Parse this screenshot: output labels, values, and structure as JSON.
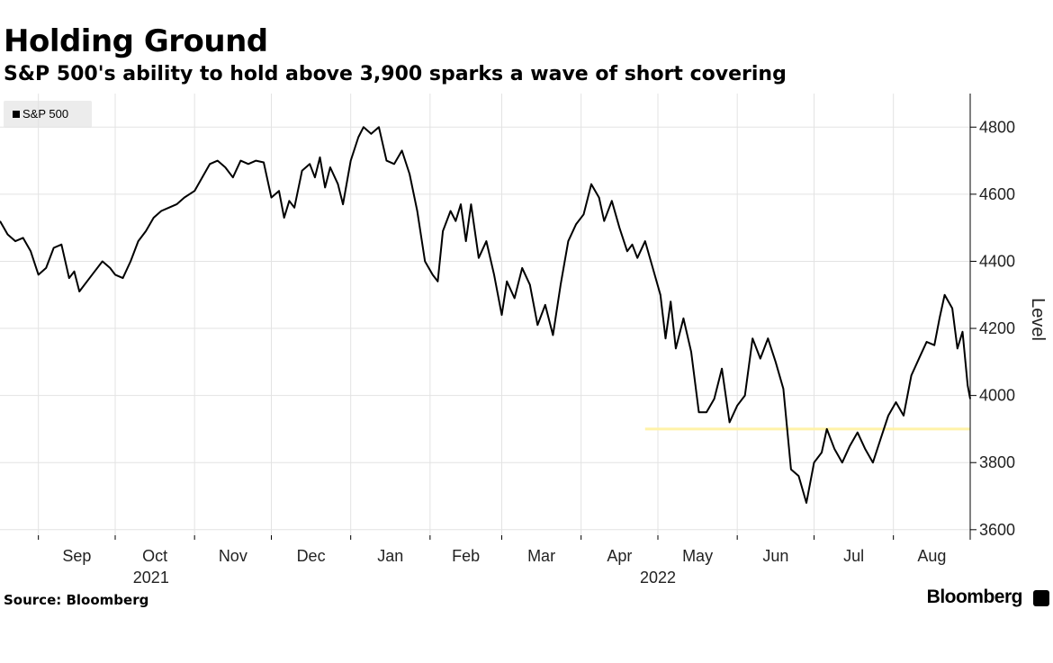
{
  "chart_data": {
    "type": "line",
    "title": "Holding Ground",
    "subtitle": "S&P 500's ability to hold above 3,900 sparks a wave of short covering",
    "xlabel": "",
    "ylabel": "Level",
    "ylim": [
      3570,
      4900
    ],
    "yticks": [
      3600,
      3800,
      4000,
      4200,
      4400,
      4600,
      4800
    ],
    "xlim": [
      "2021-08-17",
      "2022-08-31"
    ],
    "x_month_ticks": [
      {
        "date": "2021-09-01",
        "label": "Sep"
      },
      {
        "date": "2021-10-01",
        "label": "Oct"
      },
      {
        "date": "2021-11-01",
        "label": "Nov"
      },
      {
        "date": "2021-12-01",
        "label": "Dec"
      },
      {
        "date": "2022-01-01",
        "label": "Jan"
      },
      {
        "date": "2022-02-01",
        "label": "Feb"
      },
      {
        "date": "2022-03-01",
        "label": "Mar"
      },
      {
        "date": "2022-04-01",
        "label": "Apr"
      },
      {
        "date": "2022-05-01",
        "label": "May"
      },
      {
        "date": "2022-06-01",
        "label": "Jun"
      },
      {
        "date": "2022-07-01",
        "label": "Jul"
      },
      {
        "date": "2022-08-01",
        "label": "Aug"
      }
    ],
    "x_year_labels": [
      {
        "date": "2021-10-15",
        "label": "2021"
      },
      {
        "date": "2022-05-01",
        "label": "2022"
      }
    ],
    "grid": true,
    "legend_position": "top-left",
    "series": [
      {
        "name": "S&P 500",
        "color": "#000000",
        "points": [
          [
            "2021-08-17",
            4520
          ],
          [
            "2021-08-20",
            4480
          ],
          [
            "2021-08-23",
            4460
          ],
          [
            "2021-08-26",
            4470
          ],
          [
            "2021-08-29",
            4430
          ],
          [
            "2021-09-01",
            4360
          ],
          [
            "2021-09-04",
            4380
          ],
          [
            "2021-09-07",
            4440
          ],
          [
            "2021-09-10",
            4450
          ],
          [
            "2021-09-13",
            4350
          ],
          [
            "2021-09-15",
            4370
          ],
          [
            "2021-09-17",
            4310
          ],
          [
            "2021-09-20",
            4340
          ],
          [
            "2021-09-23",
            4370
          ],
          [
            "2021-09-26",
            4400
          ],
          [
            "2021-09-29",
            4380
          ],
          [
            "2021-10-01",
            4360
          ],
          [
            "2021-10-04",
            4350
          ],
          [
            "2021-10-07",
            4400
          ],
          [
            "2021-10-10",
            4460
          ],
          [
            "2021-10-13",
            4490
          ],
          [
            "2021-10-16",
            4530
          ],
          [
            "2021-10-19",
            4550
          ],
          [
            "2021-10-22",
            4560
          ],
          [
            "2021-10-25",
            4570
          ],
          [
            "2021-10-28",
            4590
          ],
          [
            "2021-11-01",
            4610
          ],
          [
            "2021-11-04",
            4650
          ],
          [
            "2021-11-07",
            4690
          ],
          [
            "2021-11-10",
            4700
          ],
          [
            "2021-11-13",
            4680
          ],
          [
            "2021-11-16",
            4650
          ],
          [
            "2021-11-19",
            4700
          ],
          [
            "2021-11-22",
            4690
          ],
          [
            "2021-11-25",
            4700
          ],
          [
            "2021-11-28",
            4695
          ],
          [
            "2021-12-01",
            4590
          ],
          [
            "2021-12-04",
            4610
          ],
          [
            "2021-12-06",
            4530
          ],
          [
            "2021-12-08",
            4580
          ],
          [
            "2021-12-10",
            4560
          ],
          [
            "2021-12-13",
            4670
          ],
          [
            "2021-12-16",
            4690
          ],
          [
            "2021-12-18",
            4650
          ],
          [
            "2021-12-20",
            4710
          ],
          [
            "2021-12-22",
            4620
          ],
          [
            "2021-12-24",
            4680
          ],
          [
            "2021-12-27",
            4630
          ],
          [
            "2021-12-29",
            4570
          ],
          [
            "2022-01-01",
            4700
          ],
          [
            "2022-01-04",
            4770
          ],
          [
            "2022-01-06",
            4800
          ],
          [
            "2022-01-09",
            4780
          ],
          [
            "2022-01-12",
            4800
          ],
          [
            "2022-01-15",
            4700
          ],
          [
            "2022-01-18",
            4690
          ],
          [
            "2022-01-21",
            4730
          ],
          [
            "2022-01-24",
            4660
          ],
          [
            "2022-01-27",
            4550
          ],
          [
            "2022-01-30",
            4400
          ],
          [
            "2022-02-02",
            4360
          ],
          [
            "2022-02-04",
            4340
          ],
          [
            "2022-02-06",
            4490
          ],
          [
            "2022-02-09",
            4550
          ],
          [
            "2022-02-11",
            4520
          ],
          [
            "2022-02-13",
            4570
          ],
          [
            "2022-02-15",
            4460
          ],
          [
            "2022-02-17",
            4570
          ],
          [
            "2022-02-20",
            4410
          ],
          [
            "2022-02-23",
            4460
          ],
          [
            "2022-02-26",
            4360
          ],
          [
            "2022-03-01",
            4240
          ],
          [
            "2022-03-03",
            4340
          ],
          [
            "2022-03-06",
            4290
          ],
          [
            "2022-03-09",
            4380
          ],
          [
            "2022-03-12",
            4330
          ],
          [
            "2022-03-15",
            4210
          ],
          [
            "2022-03-18",
            4270
          ],
          [
            "2022-03-21",
            4180
          ],
          [
            "2022-03-24",
            4330
          ],
          [
            "2022-03-27",
            4460
          ],
          [
            "2022-03-30",
            4510
          ],
          [
            "2022-04-02",
            4540
          ],
          [
            "2022-04-05",
            4630
          ],
          [
            "2022-04-08",
            4590
          ],
          [
            "2022-04-10",
            4520
          ],
          [
            "2022-04-13",
            4580
          ],
          [
            "2022-04-16",
            4500
          ],
          [
            "2022-04-19",
            4430
          ],
          [
            "2022-04-21",
            4450
          ],
          [
            "2022-04-23",
            4410
          ],
          [
            "2022-04-26",
            4460
          ],
          [
            "2022-04-29",
            4380
          ],
          [
            "2022-05-02",
            4300
          ],
          [
            "2022-05-04",
            4170
          ],
          [
            "2022-05-06",
            4280
          ],
          [
            "2022-05-08",
            4140
          ],
          [
            "2022-05-11",
            4230
          ],
          [
            "2022-05-14",
            4130
          ],
          [
            "2022-05-17",
            3950
          ],
          [
            "2022-05-20",
            3950
          ],
          [
            "2022-05-23",
            3990
          ],
          [
            "2022-05-26",
            4080
          ],
          [
            "2022-05-29",
            3920
          ],
          [
            "2022-06-01",
            3970
          ],
          [
            "2022-06-04",
            4000
          ],
          [
            "2022-06-07",
            4170
          ],
          [
            "2022-06-10",
            4110
          ],
          [
            "2022-06-13",
            4170
          ],
          [
            "2022-06-16",
            4100
          ],
          [
            "2022-06-19",
            4020
          ],
          [
            "2022-06-22",
            3780
          ],
          [
            "2022-06-25",
            3760
          ],
          [
            "2022-06-28",
            3680
          ],
          [
            "2022-07-01",
            3800
          ],
          [
            "2022-07-04",
            3830
          ],
          [
            "2022-07-06",
            3900
          ],
          [
            "2022-07-09",
            3840
          ],
          [
            "2022-07-12",
            3800
          ],
          [
            "2022-07-15",
            3850
          ],
          [
            "2022-07-18",
            3890
          ],
          [
            "2022-07-21",
            3840
          ],
          [
            "2022-07-24",
            3800
          ],
          [
            "2022-07-27",
            3870
          ],
          [
            "2022-07-30",
            3940
          ],
          [
            "2022-08-02",
            3980
          ],
          [
            "2022-08-05",
            3940
          ],
          [
            "2022-08-08",
            4060
          ],
          [
            "2022-08-11",
            4110
          ],
          [
            "2022-08-14",
            4160
          ],
          [
            "2022-08-17",
            4150
          ],
          [
            "2022-08-19",
            4230
          ],
          [
            "2022-08-21",
            4300
          ],
          [
            "2022-08-24",
            4260
          ],
          [
            "2022-08-26",
            4140
          ],
          [
            "2022-08-28",
            4190
          ],
          [
            "2022-08-30",
            4030
          ],
          [
            "2022-08-31",
            3990
          ]
        ]
      }
    ],
    "reference_line": {
      "y": 3900,
      "x_start": "2022-04-26",
      "x_end": "2022-08-31",
      "color": "#fff2a8"
    }
  },
  "header": {
    "title": "Holding Ground",
    "subtitle": "S&P 500's ability to hold above 3,900 sparks a wave of short covering"
  },
  "legend": {
    "label": "S&P 500"
  },
  "footer": {
    "source": "Source: Bloomberg",
    "brand": "Bloomberg"
  },
  "colors": {
    "line": "#000000",
    "grid": "#e3e3e3",
    "reference": "#fff2a8"
  }
}
